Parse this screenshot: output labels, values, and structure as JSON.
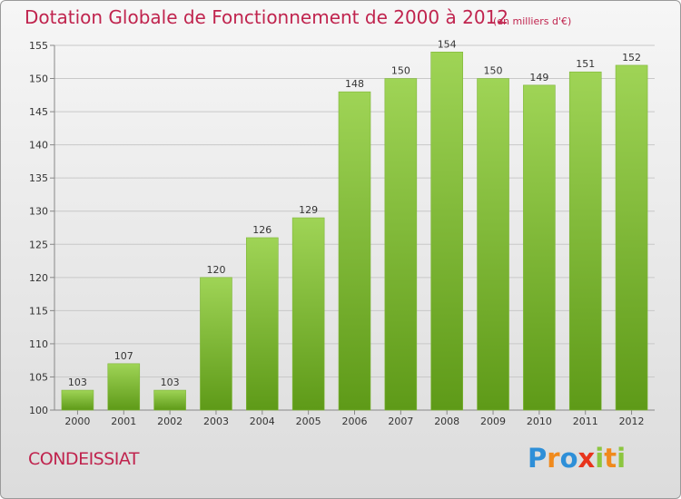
{
  "header": {
    "title": "Dotation Globale de Fonctionnement de 2000 à 2012",
    "unit": "(en milliers d'€)"
  },
  "footer": {
    "commune": "CONDEISSIAT",
    "brand": "Proxiti",
    "brand_letters": [
      {
        "ch": "P",
        "color": "#2e8fd8"
      },
      {
        "ch": "r",
        "color": "#f08a1c"
      },
      {
        "ch": "o",
        "color": "#2e8fd8"
      },
      {
        "ch": "x",
        "color": "#e8341c"
      },
      {
        "ch": "i",
        "color": "#8cc63f"
      },
      {
        "ch": "t",
        "color": "#f08a1c"
      },
      {
        "ch": "i",
        "color": "#8cc63f"
      }
    ]
  },
  "chart_data": {
    "type": "bar",
    "title": "Dotation Globale de Fonctionnement de 2000 à 2012",
    "categories": [
      "2000",
      "2001",
      "2002",
      "2003",
      "2004",
      "2005",
      "2006",
      "2007",
      "2008",
      "2009",
      "2010",
      "2011",
      "2012"
    ],
    "values": [
      103,
      107,
      103,
      120,
      126,
      129,
      148,
      150,
      154,
      150,
      149,
      151,
      152
    ],
    "ylim": [
      100,
      155
    ],
    "yticks": [
      100,
      105,
      110,
      115,
      120,
      125,
      130,
      135,
      140,
      145,
      150,
      155
    ],
    "grid": true,
    "bar_color": "#8cc63f",
    "bar_color_dark": "#5e9a18"
  }
}
